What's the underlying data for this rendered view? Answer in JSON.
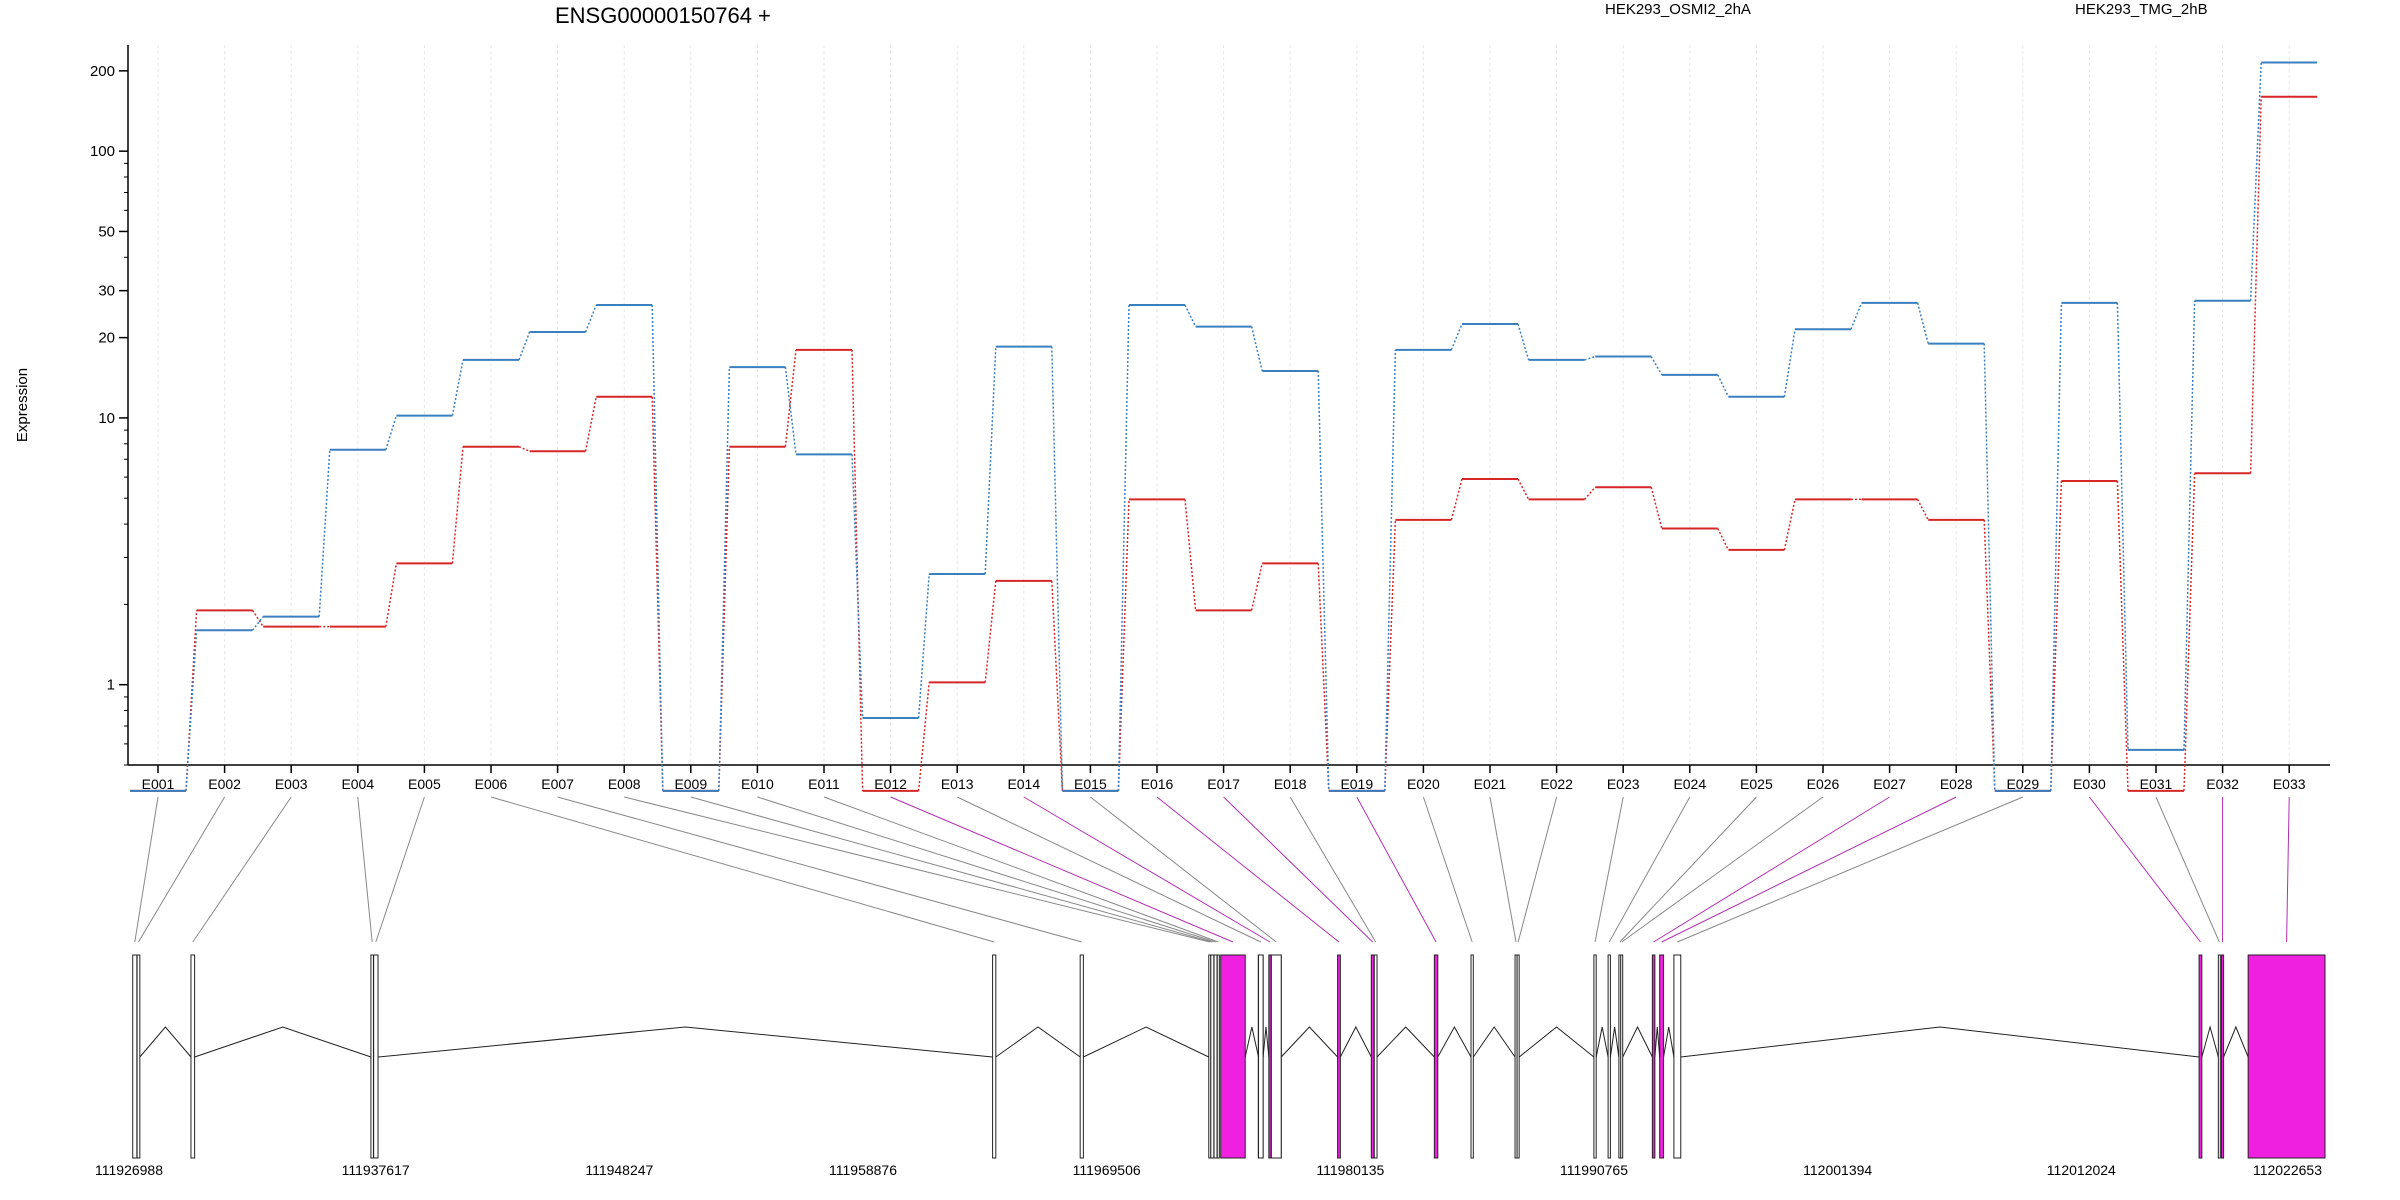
{
  "chart_data": {
    "type": "line",
    "title": "ENSG00000150764 +",
    "ylabel": "Expression",
    "xlabel": "",
    "yscale": "log",
    "ylim": [
      0.5,
      250
    ],
    "yticks": [
      1,
      10,
      20,
      30,
      50,
      100,
      200
    ],
    "grid": true,
    "legend_position": "top",
    "categories": [
      "E001",
      "E002",
      "E003",
      "E004",
      "E005",
      "E006",
      "E007",
      "E008",
      "E009",
      "E010",
      "E011",
      "E012",
      "E013",
      "E014",
      "E015",
      "E016",
      "E017",
      "E018",
      "E019",
      "E020",
      "E021",
      "E022",
      "E023",
      "E024",
      "E025",
      "E026",
      "E027",
      "E028",
      "E029",
      "E030",
      "E031",
      "E032",
      "E033"
    ],
    "series": [
      {
        "name": "HEK293_OSMI2_2hA",
        "color": "#d62728",
        "values": [
          0.4,
          1.9,
          1.65,
          1.65,
          2.85,
          7.8,
          7.5,
          12.0,
          0.4,
          7.8,
          18.0,
          0.4,
          1.02,
          2.45,
          0.4,
          4.95,
          1.9,
          2.85,
          0.4,
          4.15,
          5.9,
          4.95,
          5.5,
          3.85,
          3.2,
          4.95,
          4.95,
          4.15,
          0.4,
          5.8,
          0.4,
          6.2,
          160
        ]
      },
      {
        "name": "HEK293_TMG_2hB",
        "color": "#3a7fbf",
        "values": [
          0.4,
          1.6,
          1.8,
          7.6,
          10.2,
          16.5,
          21.0,
          26.5,
          0.4,
          15.5,
          7.3,
          0.75,
          2.6,
          18.5,
          0.4,
          26.5,
          22.0,
          15.0,
          0.4,
          18.0,
          22.5,
          16.5,
          17.0,
          14.5,
          12.0,
          21.5,
          27.0,
          19.0,
          0.4,
          27.0,
          0.57,
          27.5,
          215
        ]
      }
    ],
    "genomic_axis_labels": [
      "111926988",
      "111937617",
      "111948247",
      "111958876",
      "111969506",
      "111980135",
      "111990765",
      "112001394",
      "112012024",
      "112022653"
    ],
    "genomic_range": [
      111926988,
      112022653
    ],
    "exon_track": {
      "highlight_color": "#f020e0",
      "exons": [
        {
          "id": "E001",
          "start": 111927020,
          "end": 111927200,
          "hl": false
        },
        {
          "id": "E002",
          "start": 111927210,
          "end": 111927330,
          "hl": false
        },
        {
          "id": "E003",
          "start": 111929560,
          "end": 111929720,
          "hl": false
        },
        {
          "id": "E004",
          "start": 111937410,
          "end": 111937520,
          "hl": false
        },
        {
          "id": "E005",
          "start": 111937530,
          "end": 111937720,
          "hl": false
        },
        {
          "id": "E006",
          "start": 111964530,
          "end": 111964670,
          "hl": false
        },
        {
          "id": "E007",
          "start": 111968350,
          "end": 111968490,
          "hl": false
        },
        {
          "id": "E008",
          "start": 111973960,
          "end": 111974040,
          "hl": false
        },
        {
          "id": "E009",
          "start": 111974050,
          "end": 111974180,
          "hl": false
        },
        {
          "id": "E010",
          "start": 111974190,
          "end": 111974320,
          "hl": false
        },
        {
          "id": "E011",
          "start": 111974330,
          "end": 111974420,
          "hl": false
        },
        {
          "id": "E012",
          "start": 111974480,
          "end": 111975550,
          "hl": true
        },
        {
          "id": "E013",
          "start": 111976130,
          "end": 111976330,
          "hl": false
        },
        {
          "id": "E014",
          "start": 111976580,
          "end": 111976680,
          "hl": true
        },
        {
          "id": "E015",
          "start": 111976690,
          "end": 111977120,
          "hl": false
        },
        {
          "id": "E016",
          "start": 111979580,
          "end": 111979700,
          "hl": true
        },
        {
          "id": "E017",
          "start": 111981050,
          "end": 111981170,
          "hl": true
        },
        {
          "id": "E018",
          "start": 111981180,
          "end": 111981300,
          "hl": false
        },
        {
          "id": "E019",
          "start": 111983800,
          "end": 111983950,
          "hl": true
        },
        {
          "id": "E020",
          "start": 111985400,
          "end": 111985500,
          "hl": false
        },
        {
          "id": "E021",
          "start": 111987320,
          "end": 111987400,
          "hl": false
        },
        {
          "id": "E022",
          "start": 111987410,
          "end": 111987500,
          "hl": false
        },
        {
          "id": "E023",
          "start": 111990760,
          "end": 111990860,
          "hl": false
        },
        {
          "id": "E024",
          "start": 111991380,
          "end": 111991480,
          "hl": false
        },
        {
          "id": "E025",
          "start": 111991850,
          "end": 111991920,
          "hl": false
        },
        {
          "id": "E026",
          "start": 111991930,
          "end": 111992000,
          "hl": false
        },
        {
          "id": "E027",
          "start": 111993310,
          "end": 111993420,
          "hl": true
        },
        {
          "id": "E028",
          "start": 111993630,
          "end": 111993800,
          "hl": true
        },
        {
          "id": "E029",
          "start": 111994250,
          "end": 111994550,
          "hl": false
        },
        {
          "id": "E030",
          "start": 112017160,
          "end": 112017280,
          "hl": true
        },
        {
          "id": "E031",
          "start": 112018000,
          "end": 112018060,
          "hl": false
        },
        {
          "id": "E032",
          "start": 112018140,
          "end": 112018230,
          "hl": true
        },
        {
          "id": "E033",
          "start": 112019300,
          "end": 112022653,
          "hl": true
        }
      ],
      "grey_exons": [
        {
          "start": 111974180,
          "end": 111974320
        },
        {
          "start": 111976120,
          "end": 111976330
        },
        {
          "start": 111976690,
          "end": 111977120
        }
      ]
    }
  }
}
